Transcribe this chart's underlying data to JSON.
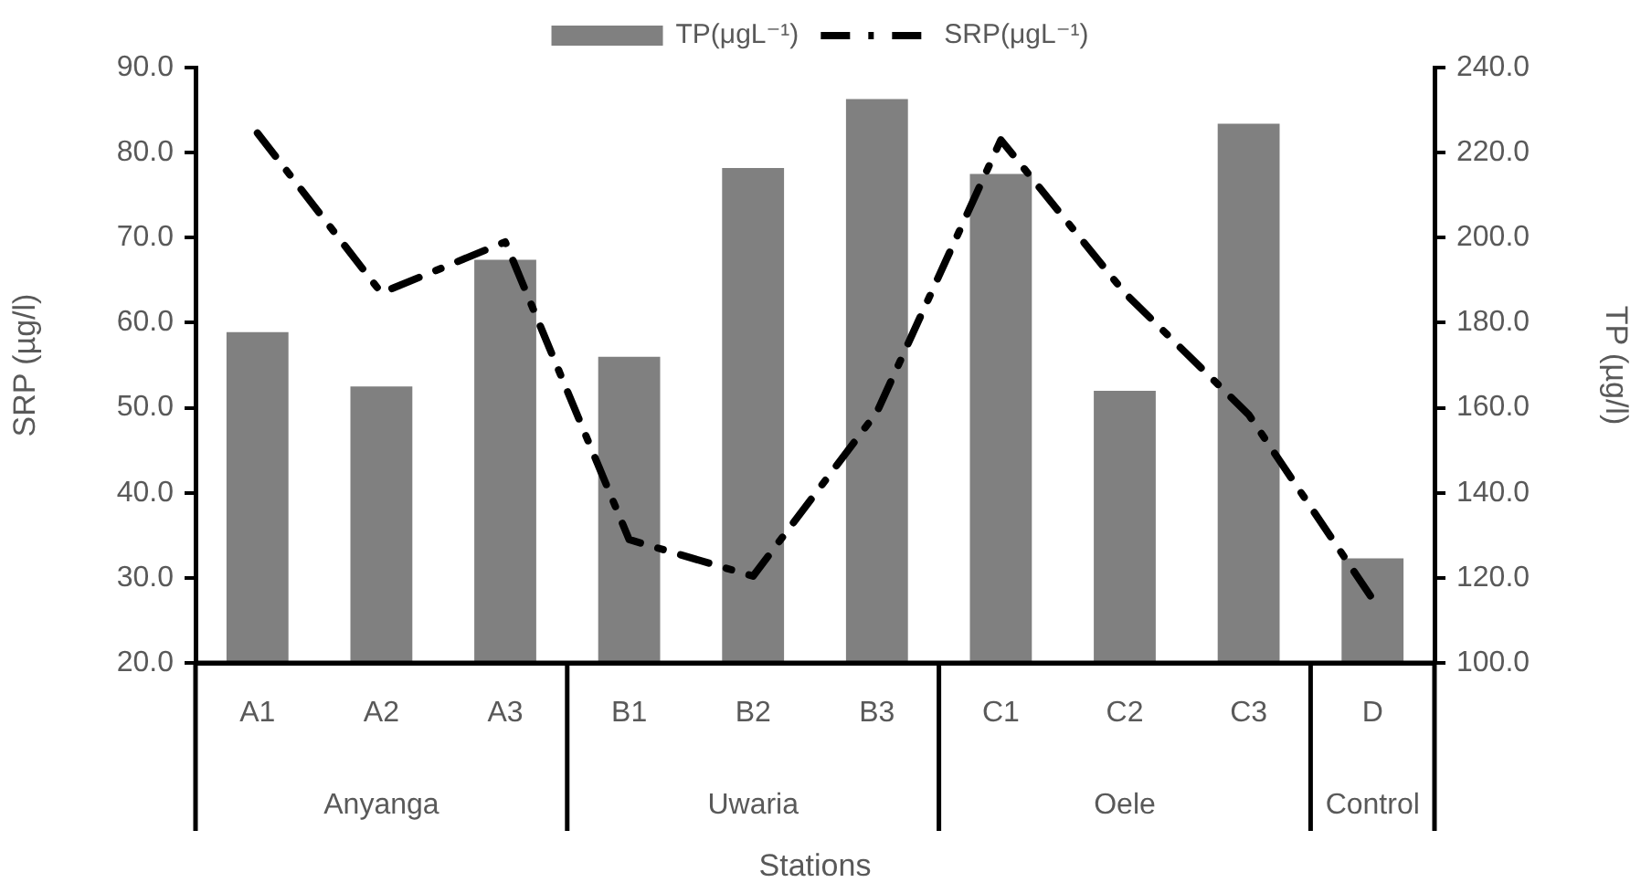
{
  "chart_data": {
    "type": "bar",
    "categories": [
      "A1",
      "A2",
      "A3",
      "B1",
      "B2",
      "B3",
      "C1",
      "C2",
      "C3",
      "D"
    ],
    "annotations": [
      "Anyanga",
      "Uwaria",
      "Oele",
      "Control"
    ],
    "series": [
      {
        "name": "TP(μgL⁻¹)",
        "axis": "y2",
        "color": "#808080",
        "values": [
          177.8,
          165.0,
          194.8,
          172.0,
          216.4,
          232.6,
          215.0,
          164.0,
          226.8,
          124.6
        ]
      },
      {
        "name": "SRP(μgL⁻¹)",
        "type": "line",
        "color": "#000000",
        "line_style": "dashed",
        "marker": "none",
        "values": [
          82.3,
          63.5,
          69.5,
          34.5,
          30.2,
          49.5,
          81.5,
          63.5,
          49.2,
          27.5
        ]
      }
    ],
    "xlabel": "Stations",
    "ylabel": "SRP (µg/l)",
    "y2label": "TP (µg/l)",
    "ylim": [
      20,
      90
    ],
    "yticks": [
      {
        "value": 20,
        "label": "20.0"
      },
      {
        "value": 30,
        "label": "30.0"
      },
      {
        "value": 40,
        "label": "40.0"
      },
      {
        "value": 50,
        "label": "50.0"
      },
      {
        "value": 60,
        "label": "60.0"
      },
      {
        "value": 70,
        "label": "70.0"
      },
      {
        "value": 80,
        "label": "80.0"
      },
      {
        "value": 90,
        "label": "90.0"
      }
    ],
    "y2lim": [
      100,
      240
    ],
    "y2ticks": [
      {
        "value": 100,
        "label": "100.0"
      },
      {
        "value": 120,
        "label": "120.0"
      },
      {
        "value": 140,
        "label": "140.0"
      },
      {
        "value": 160,
        "label": "160.0"
      },
      {
        "value": 180,
        "label": "180.0"
      },
      {
        "value": 200,
        "label": "200.0"
      },
      {
        "value": 220,
        "label": "220.0"
      },
      {
        "value": 240,
        "label": "240.0"
      }
    ],
    "grid": false,
    "legend": "top"
  }
}
